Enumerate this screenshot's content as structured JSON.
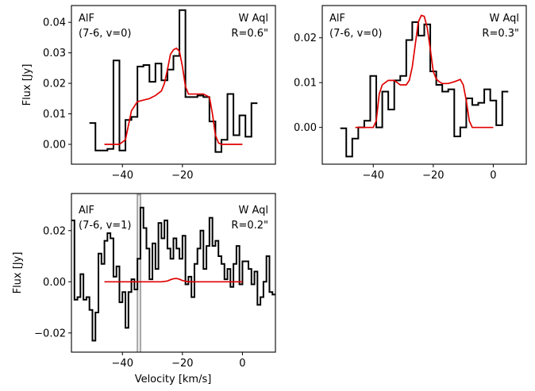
{
  "chart_data": [
    {
      "type": "line",
      "panel": "top-left",
      "species_label": "AlF",
      "transition_label": "(7-6, v=0)",
      "star_label": "W Aql",
      "radius_label": "R=0.6\"",
      "ylabel": "Flux [Jy]",
      "xlabel": "",
      "xlim": [
        -57,
        11
      ],
      "ylim": [
        -0.0065,
        0.0455
      ],
      "xticks": [
        -40,
        -20
      ],
      "xtick_labels": [
        "−40",
        "−20"
      ],
      "yticks": [
        0.0,
        0.01,
        0.02,
        0.03,
        0.04
      ],
      "ytick_labels": [
        "0.00",
        "0.01",
        "0.02",
        "0.03",
        "0.04"
      ],
      "series": [
        {
          "style": "step",
          "color": "#000000",
          "edges": [
            -51,
            -49,
            -47,
            -45,
            -43,
            -41,
            -39,
            -37,
            -35,
            -33,
            -31,
            -29,
            -27,
            -25,
            -23,
            -21,
            -19,
            -17,
            -15,
            -13,
            -11,
            -9,
            -7,
            -5,
            -3,
            -1,
            1,
            3,
            5
          ],
          "values": [
            0.007,
            -0.002,
            -0.002,
            -0.0015,
            0.0275,
            -0.002,
            0.008,
            0.009,
            0.0255,
            0.026,
            0.0205,
            0.0265,
            0.021,
            0.0245,
            0.029,
            0.044,
            0.0155,
            0.0155,
            0.016,
            0.0155,
            0.0075,
            -0.0025,
            0.0015,
            0.0165,
            0.003,
            0.0095,
            0.0025,
            0.0135
          ]
        },
        {
          "style": "line",
          "color": "#e00000",
          "x": [
            -46,
            -41,
            -39,
            -37,
            -35,
            -33,
            -31,
            -29,
            -27,
            -26,
            -25,
            -24,
            -23,
            -22,
            -21,
            -20,
            -19,
            -18,
            -17,
            -15,
            -13,
            -11,
            -10,
            -9,
            -8,
            -7,
            0
          ],
          "y": [
            0.0,
            0.0,
            0.0015,
            0.011,
            0.014,
            0.0145,
            0.015,
            0.016,
            0.0175,
            0.02,
            0.0245,
            0.0295,
            0.031,
            0.0315,
            0.0305,
            0.0255,
            0.019,
            0.0165,
            0.0165,
            0.0165,
            0.0165,
            0.0155,
            0.01,
            0.003,
            0.0005,
            0.0,
            0.0
          ]
        }
      ]
    },
    {
      "type": "line",
      "panel": "top-right",
      "species_label": "AlF",
      "transition_label": "(7-6, v=0)",
      "star_label": "W Aql",
      "radius_label": "R=0.3\"",
      "ylabel": "",
      "xlabel": "",
      "xlim": [
        -57,
        11
      ],
      "ylim": [
        -0.0082,
        0.0272
      ],
      "xticks": [
        -40,
        -20,
        0
      ],
      "xtick_labels": [
        "−40",
        "−20",
        "0"
      ],
      "yticks": [
        0.0,
        0.01,
        0.02
      ],
      "ytick_labels": [
        "0.00",
        "0.01",
        "0.02"
      ],
      "series": [
        {
          "style": "step",
          "color": "#000000",
          "edges": [
            -51,
            -49,
            -47,
            -45,
            -43,
            -41,
            -39,
            -37,
            -35,
            -33,
            -31,
            -29,
            -27,
            -25,
            -23,
            -21,
            -19,
            -17,
            -15,
            -13,
            -11,
            -9,
            -7,
            -5,
            -3,
            -1,
            1,
            3,
            5
          ],
          "values": [
            -0.0002,
            -0.0065,
            -0.0025,
            0.0,
            0.0015,
            0.0115,
            -0.0,
            0.008,
            0.004,
            0.0105,
            0.0115,
            0.0195,
            0.0235,
            0.0205,
            0.023,
            0.0125,
            0.0095,
            0.008,
            0.0085,
            -0.002,
            0.0,
            0.0065,
            0.005,
            0.0055,
            0.0085,
            0.006,
            0.0005,
            0.008
          ]
        },
        {
          "style": "line",
          "color": "#e00000",
          "x": [
            -46,
            -40,
            -39,
            -38,
            -37,
            -35,
            -33,
            -31,
            -29,
            -28,
            -27,
            -26,
            -25,
            -24,
            -23,
            -22,
            -21,
            -20,
            -19,
            -18,
            -17,
            -15,
            -13,
            -11,
            -10,
            -9,
            -8,
            -7,
            0
          ],
          "y": [
            0.0,
            0.0,
            0.0015,
            0.0075,
            0.0095,
            0.0105,
            0.0105,
            0.0095,
            0.0095,
            0.0105,
            0.0135,
            0.0185,
            0.0235,
            0.025,
            0.0248,
            0.0222,
            0.0175,
            0.0125,
            0.0108,
            0.0102,
            0.0098,
            0.0098,
            0.0102,
            0.0107,
            0.0095,
            0.006,
            0.0015,
            0.0,
            0.0
          ]
        }
      ]
    },
    {
      "type": "line",
      "panel": "bottom-left",
      "species_label": "AlF",
      "transition_label": "(7-6, v=1)",
      "star_label": "W Aql",
      "radius_label": "R=0.2\"",
      "ylabel": "Flux [Jy]",
      "xlabel": "Velocity [km/s]",
      "xlim": [
        -57,
        11
      ],
      "ylim": [
        -0.0275,
        0.0345
      ],
      "xticks": [
        -40,
        -20,
        0
      ],
      "xtick_labels": [
        "−40",
        "−20",
        "0"
      ],
      "yticks": [
        -0.02,
        0.0,
        0.02
      ],
      "ytick_labels": [
        "−0.02",
        "0.00",
        "0.02"
      ],
      "series": [
        {
          "style": "step",
          "color": "#000000",
          "edges": [
            -57,
            -56,
            -55,
            -54,
            -53,
            -52,
            -51,
            -50,
            -49,
            -48,
            -47,
            -46,
            -45,
            -44,
            -43,
            -42,
            -41,
            -40,
            -39,
            -38,
            -37,
            -36,
            -35,
            -34,
            -33,
            -32,
            -31,
            -30,
            -29,
            -28,
            -27,
            -26,
            -25,
            -24,
            -23,
            -22,
            -21,
            -20,
            -19,
            -18,
            -17,
            -16,
            -15,
            -14,
            -13,
            -12,
            -11,
            -10,
            -9,
            -8,
            -7,
            -6,
            -5,
            -4,
            -3,
            -2,
            -1,
            0,
            1,
            2,
            3,
            4,
            5,
            6,
            7,
            8,
            9,
            10,
            11
          ],
          "values": [
            0.024,
            -0.007,
            -0.006,
            0.003,
            -0.007,
            -0.006,
            -0.011,
            -0.023,
            -0.012,
            0.011,
            0.007,
            0.016,
            0.019,
            0.017,
            0.002,
            0.006,
            -0.008,
            -0.004,
            -0.018,
            -0.004,
            0.001,
            -0.003,
            0.009,
            0.029,
            0.021,
            0.013,
            0.001,
            0.015,
            0.005,
            0.023,
            0.017,
            0.024,
            0.013,
            0.009,
            0.017,
            0.013,
            0.009,
            0.018,
            -0.001,
            0.002,
            -0.006,
            0.007,
            0.013,
            0.02,
            0.005,
            0.014,
            0.025,
            0.014,
            0.016,
            0.01,
            0.007,
            0.001,
            0.005,
            -0.002,
            0.007,
            0.014,
            -0.001,
            0.008,
            0.008,
            0.005,
            -0.001,
            0.004,
            -0.009,
            -0.006,
            0.0,
            0.01,
            -0.004,
            -0.005
          ]
        },
        {
          "style": "line",
          "color": "#e00000",
          "x": [
            -46,
            -30,
            -27,
            -25,
            -24,
            -23,
            -22,
            -21,
            -20,
            -18,
            0
          ],
          "y": [
            0.0,
            0.0,
            0.0,
            0.0003,
            0.0008,
            0.0012,
            0.0013,
            0.001,
            0.0005,
            0.0,
            0.0
          ]
        }
      ],
      "greyed_channel": {
        "x_edges": [
          -35,
          -34
        ],
        "value": 0.034,
        "color": "#aaaaaa"
      }
    }
  ]
}
